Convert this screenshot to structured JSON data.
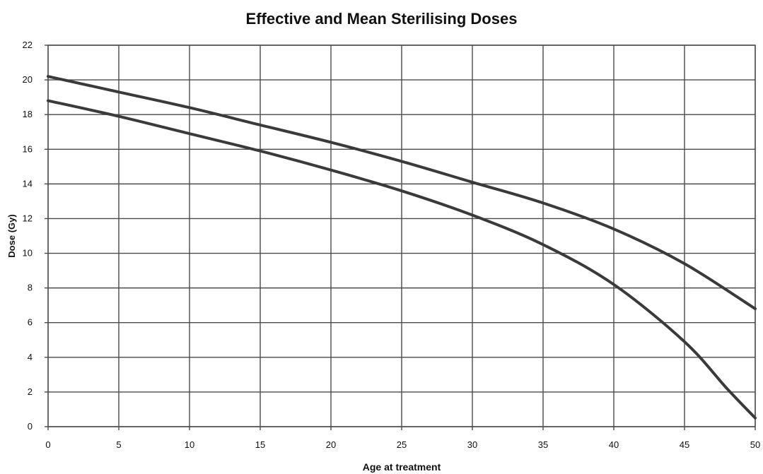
{
  "chart_data": {
    "type": "line",
    "title": "Effective and Mean Sterilising Doses",
    "xlabel": "Age at treatment",
    "ylabel": "Dose (Gy)",
    "xlim": [
      0,
      50
    ],
    "ylim": [
      0,
      22
    ],
    "xticks": [
      0,
      5,
      10,
      15,
      20,
      25,
      30,
      35,
      40,
      45,
      50
    ],
    "yticks": [
      0,
      2,
      4,
      6,
      8,
      10,
      12,
      14,
      16,
      18,
      20,
      22
    ],
    "grid": true,
    "legend": "none",
    "line_color": "#3a3a3a",
    "grid_color": "#4a4a4a",
    "series": [
      {
        "x": [
          0,
          5,
          10,
          15,
          20,
          25,
          30,
          35,
          40,
          45,
          50
        ],
        "values": [
          20.2,
          19.3,
          18.4,
          17.4,
          16.4,
          15.3,
          14.1,
          12.9,
          11.4,
          9.4,
          6.8
        ]
      },
      {
        "x": [
          0,
          5,
          10,
          15,
          20,
          25,
          30,
          35,
          40,
          45,
          48,
          50
        ],
        "values": [
          18.8,
          17.9,
          16.9,
          15.9,
          14.8,
          13.6,
          12.2,
          10.5,
          8.2,
          4.9,
          2.2,
          0.5
        ]
      }
    ]
  }
}
